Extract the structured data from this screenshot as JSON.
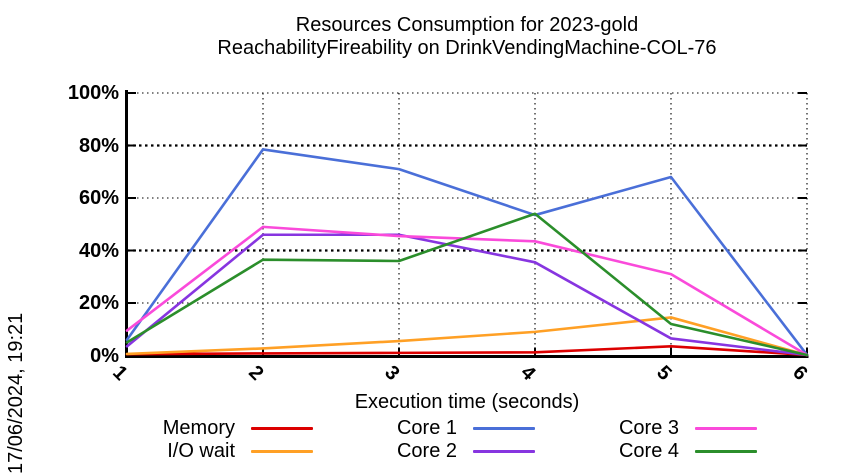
{
  "title": {
    "line1": "Resources Consumption for 2023-gold",
    "line2": "ReachabilityFireability on DrinkVendingMachine-COL-76"
  },
  "timestamp": "17/06/2024, 19:21",
  "chart_data": {
    "type": "line",
    "x": [
      1,
      2,
      3,
      4,
      5,
      6
    ],
    "xlabel": "Execution time (seconds)",
    "ylabel": "",
    "xlim": [
      1,
      6
    ],
    "ylim": [
      0,
      100
    ],
    "xticks": [
      "1",
      "2",
      "3",
      "4",
      "5",
      "6"
    ],
    "yticks": [
      "0%",
      "20%",
      "40%",
      "60%",
      "80%",
      "100%"
    ],
    "grid": true,
    "legend_position": "bottom",
    "axis_color": "#000000",
    "background_color": "#ffffff",
    "series": [
      {
        "name": "Memory",
        "color": "#dc0000",
        "values": [
          0.5,
          0.8,
          1.0,
          1.2,
          3.5,
          0.2
        ]
      },
      {
        "name": "I/O wait",
        "color": "#ffa025",
        "values": [
          0.6,
          2.7,
          5.5,
          9.0,
          14.5,
          0.2
        ]
      },
      {
        "name": "Core 1",
        "color": "#4a6fd8",
        "values": [
          6.0,
          78.5,
          71.0,
          53.5,
          68.0,
          0.2
        ]
      },
      {
        "name": "Core 2",
        "color": "#8735e0",
        "values": [
          3.5,
          46.0,
          46.0,
          35.5,
          6.5,
          0.2
        ]
      },
      {
        "name": "Core 3",
        "color": "#fa4ada",
        "values": [
          9.5,
          49.0,
          45.5,
          43.5,
          31.0,
          0.2
        ]
      },
      {
        "name": "Core 4",
        "color": "#2b8e2b",
        "values": [
          5.0,
          36.5,
          36.0,
          54.0,
          12.0,
          0.2
        ]
      }
    ]
  }
}
